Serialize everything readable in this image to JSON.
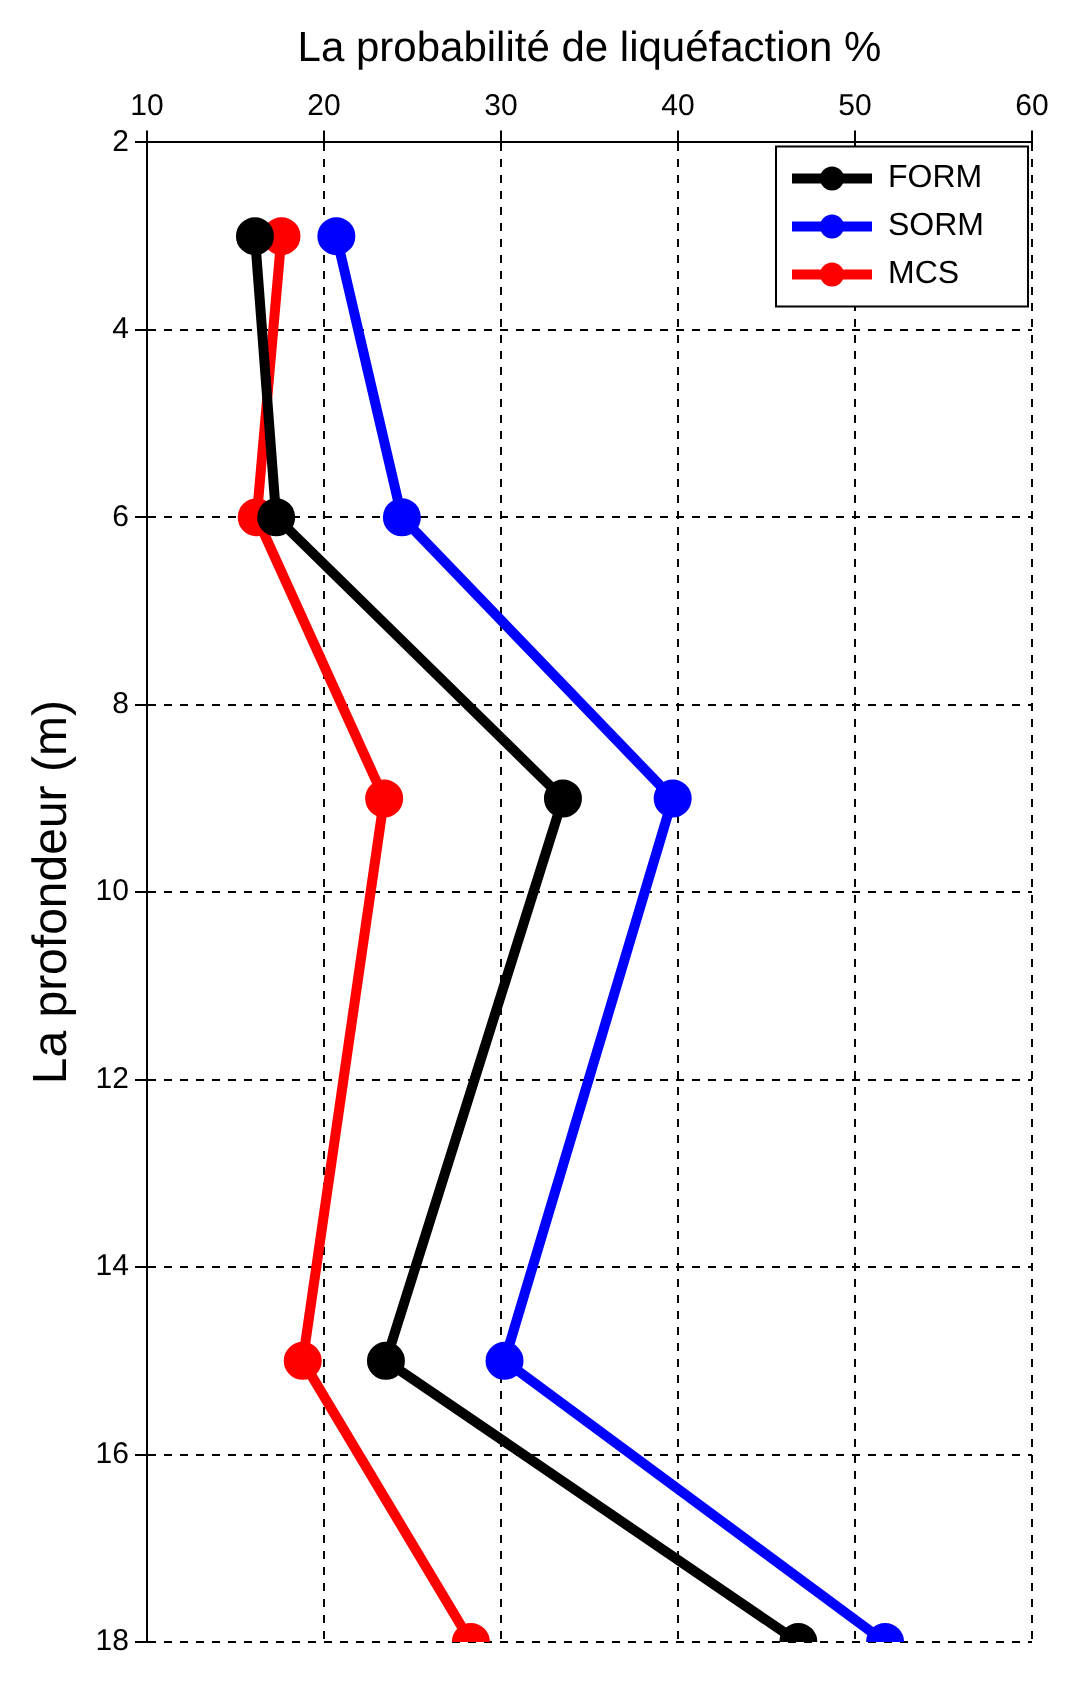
{
  "chart_data": {
    "type": "line",
    "xlabel": "La probabilité de liquéfaction %",
    "ylabel": "La profondeur (m)",
    "xlim": [
      10,
      60
    ],
    "xticks": [
      10,
      20,
      30,
      40,
      50,
      60
    ],
    "ylim": [
      18,
      2
    ],
    "yticks": [
      2,
      4,
      6,
      8,
      10,
      12,
      14,
      16,
      18
    ],
    "grid": true,
    "legend": "top right",
    "marker": "circle",
    "line_style": "solid",
    "series": [
      {
        "name": "FORM",
        "color": "#000000",
        "x": [
          16.1,
          17.3,
          33.5,
          23.5,
          46.8
        ],
        "values": [
          3,
          6,
          9,
          15,
          18
        ]
      },
      {
        "name": "SORM",
        "color": "#0000ff",
        "x": [
          20.7,
          24.4,
          39.7,
          30.2,
          51.7
        ],
        "values": [
          3,
          6,
          9,
          15,
          18
        ]
      },
      {
        "name": "MCS",
        "color": "#ff0000",
        "x": [
          17.6,
          16.2,
          23.4,
          18.8,
          28.3
        ],
        "values": [
          3,
          6,
          9,
          15,
          18
        ]
      }
    ]
  }
}
